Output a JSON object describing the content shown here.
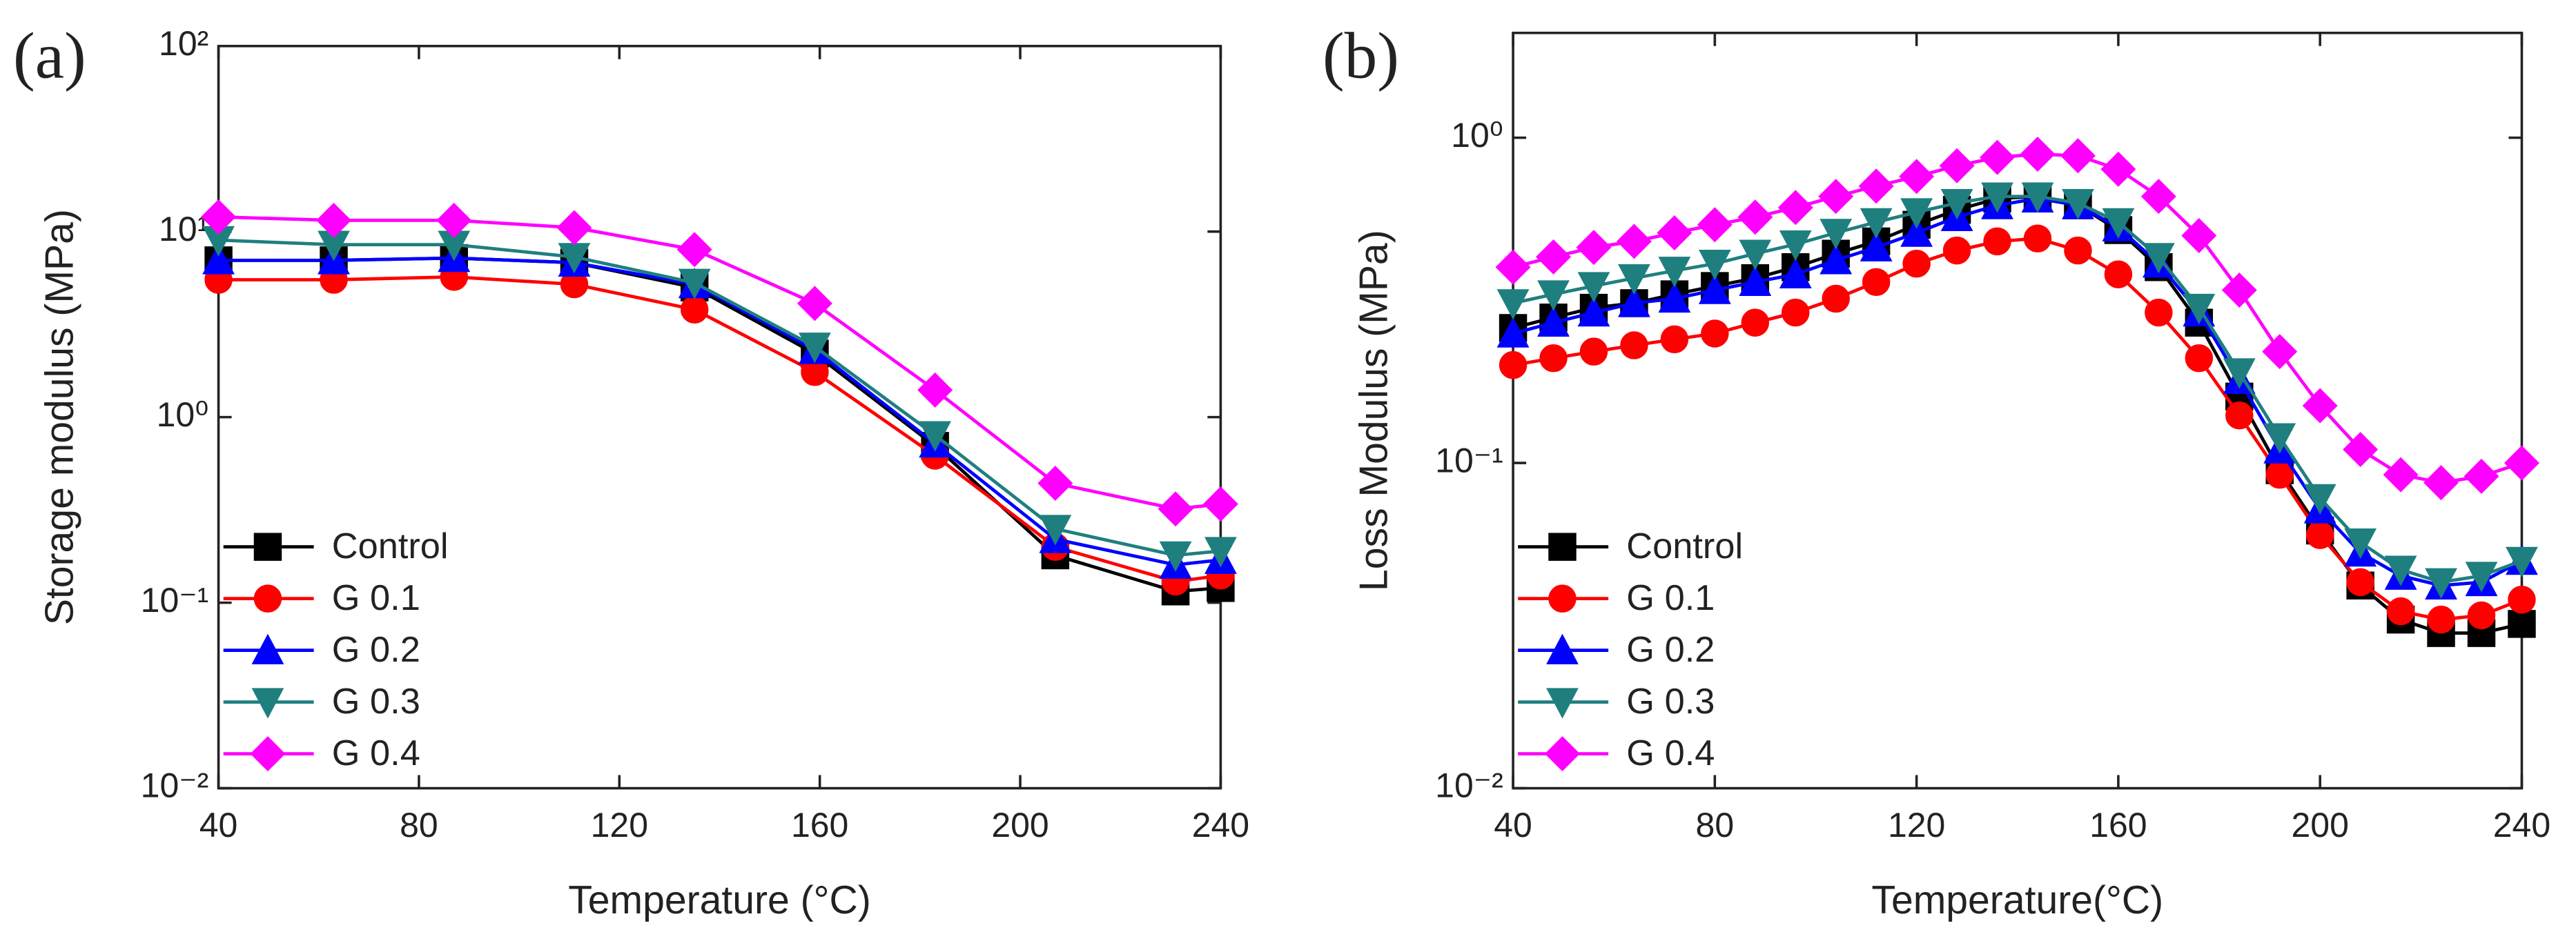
{
  "chart_data": [
    {
      "type": "line",
      "label": "(a)",
      "x_label": "Temperature (°C)",
      "y_label": "Storage modulus (MPa)",
      "log_y": true,
      "legend": "lower left",
      "x": [
        40,
        63,
        87,
        111,
        135,
        159,
        183,
        207,
        231,
        240
      ],
      "xlim": [
        40,
        240
      ],
      "xticks": [
        40,
        80,
        120,
        160,
        200,
        240
      ],
      "ylim": [
        0.01,
        100
      ],
      "yticks": [
        {
          "value": 0.01,
          "label": "10⁻²"
        },
        {
          "value": 0.1,
          "label": "10⁻¹"
        },
        {
          "value": 1,
          "label": "10⁰"
        },
        {
          "value": 10,
          "label": "10¹"
        },
        {
          "value": 100,
          "label": "10²"
        }
      ],
      "series": [
        {
          "name": "Control",
          "color": "#000000",
          "marker": "square",
          "values": [
            7,
            7,
            7.2,
            6.8,
            5,
            2.2,
            0.7,
            0.18,
            0.115,
            0.12
          ]
        },
        {
          "name": "G 0.1",
          "color": "#ff0000",
          "marker": "circle",
          "values": [
            5.5,
            5.5,
            5.7,
            5.2,
            3.8,
            1.75,
            0.62,
            0.2,
            0.13,
            0.14
          ]
        },
        {
          "name": "G 0.2",
          "color": "#0000ff",
          "marker": "triangle-up",
          "values": [
            7,
            7,
            7.2,
            6.8,
            5.2,
            2.3,
            0.72,
            0.22,
            0.16,
            0.17
          ]
        },
        {
          "name": "G 0.3",
          "color": "#1f7f7f",
          "marker": "triangle-down",
          "values": [
            9,
            8.5,
            8.5,
            7.3,
            5.3,
            2.4,
            0.8,
            0.25,
            0.18,
            0.19
          ]
        },
        {
          "name": "G 0.4",
          "color": "#ff00ff",
          "marker": "diamond",
          "values": [
            12,
            11.5,
            11.5,
            10.5,
            8,
            4.1,
            1.4,
            0.44,
            0.32,
            0.34
          ]
        }
      ]
    },
    {
      "type": "line",
      "label": "(b)",
      "x_label": "Temperature(°C)",
      "y_label": "Loss Modulus (MPa)",
      "log_y": true,
      "legend": "lower left",
      "x": [
        40,
        48,
        56,
        64,
        72,
        80,
        88,
        96,
        104,
        112,
        120,
        128,
        136,
        144,
        152,
        160,
        168,
        176,
        184,
        192,
        200,
        208,
        216,
        224,
        232,
        240
      ],
      "xlim": [
        40,
        240
      ],
      "xticks": [
        40,
        80,
        120,
        160,
        200,
        240
      ],
      "ylim": [
        0.01,
        2.1
      ],
      "yticks": [
        {
          "value": 0.01,
          "label": "10⁻²"
        },
        {
          "value": 0.1,
          "label": "10⁻¹"
        },
        {
          "value": 1,
          "label": "10⁰"
        }
      ],
      "series": [
        {
          "name": "Control",
          "color": "#000000",
          "marker": "square",
          "values": [
            0.26,
            0.28,
            0.3,
            0.31,
            0.33,
            0.35,
            0.37,
            0.4,
            0.44,
            0.48,
            0.54,
            0.6,
            0.65,
            0.66,
            0.62,
            0.52,
            0.4,
            0.27,
            0.16,
            0.095,
            0.062,
            0.042,
            0.033,
            0.03,
            0.03,
            0.032
          ]
        },
        {
          "name": "G 0.1",
          "color": "#ff0000",
          "marker": "circle",
          "values": [
            0.2,
            0.21,
            0.22,
            0.23,
            0.24,
            0.25,
            0.27,
            0.29,
            0.32,
            0.36,
            0.41,
            0.45,
            0.48,
            0.49,
            0.45,
            0.38,
            0.29,
            0.21,
            0.14,
            0.092,
            0.06,
            0.043,
            0.035,
            0.033,
            0.034,
            0.038
          ]
        },
        {
          "name": "G 0.2",
          "color": "#0000ff",
          "marker": "triangle-up",
          "values": [
            0.25,
            0.27,
            0.29,
            0.31,
            0.32,
            0.34,
            0.36,
            0.38,
            0.42,
            0.46,
            0.51,
            0.57,
            0.62,
            0.65,
            0.62,
            0.53,
            0.41,
            0.29,
            0.18,
            0.11,
            0.072,
            0.053,
            0.045,
            0.042,
            0.043,
            0.05
          ]
        },
        {
          "name": "G 0.3",
          "color": "#1f7f7f",
          "marker": "triangle-down",
          "values": [
            0.31,
            0.33,
            0.35,
            0.37,
            0.39,
            0.41,
            0.44,
            0.47,
            0.51,
            0.55,
            0.59,
            0.63,
            0.66,
            0.66,
            0.63,
            0.55,
            0.43,
            0.3,
            0.19,
            0.12,
            0.078,
            0.057,
            0.047,
            0.043,
            0.045,
            0.05
          ]
        },
        {
          "name": "G 0.4",
          "color": "#ff00ff",
          "marker": "diamond",
          "values": [
            0.4,
            0.43,
            0.46,
            0.48,
            0.51,
            0.54,
            0.57,
            0.61,
            0.66,
            0.71,
            0.76,
            0.82,
            0.87,
            0.89,
            0.88,
            0.8,
            0.66,
            0.5,
            0.34,
            0.22,
            0.15,
            0.11,
            0.092,
            0.087,
            0.091,
            0.1
          ]
        }
      ]
    }
  ]
}
